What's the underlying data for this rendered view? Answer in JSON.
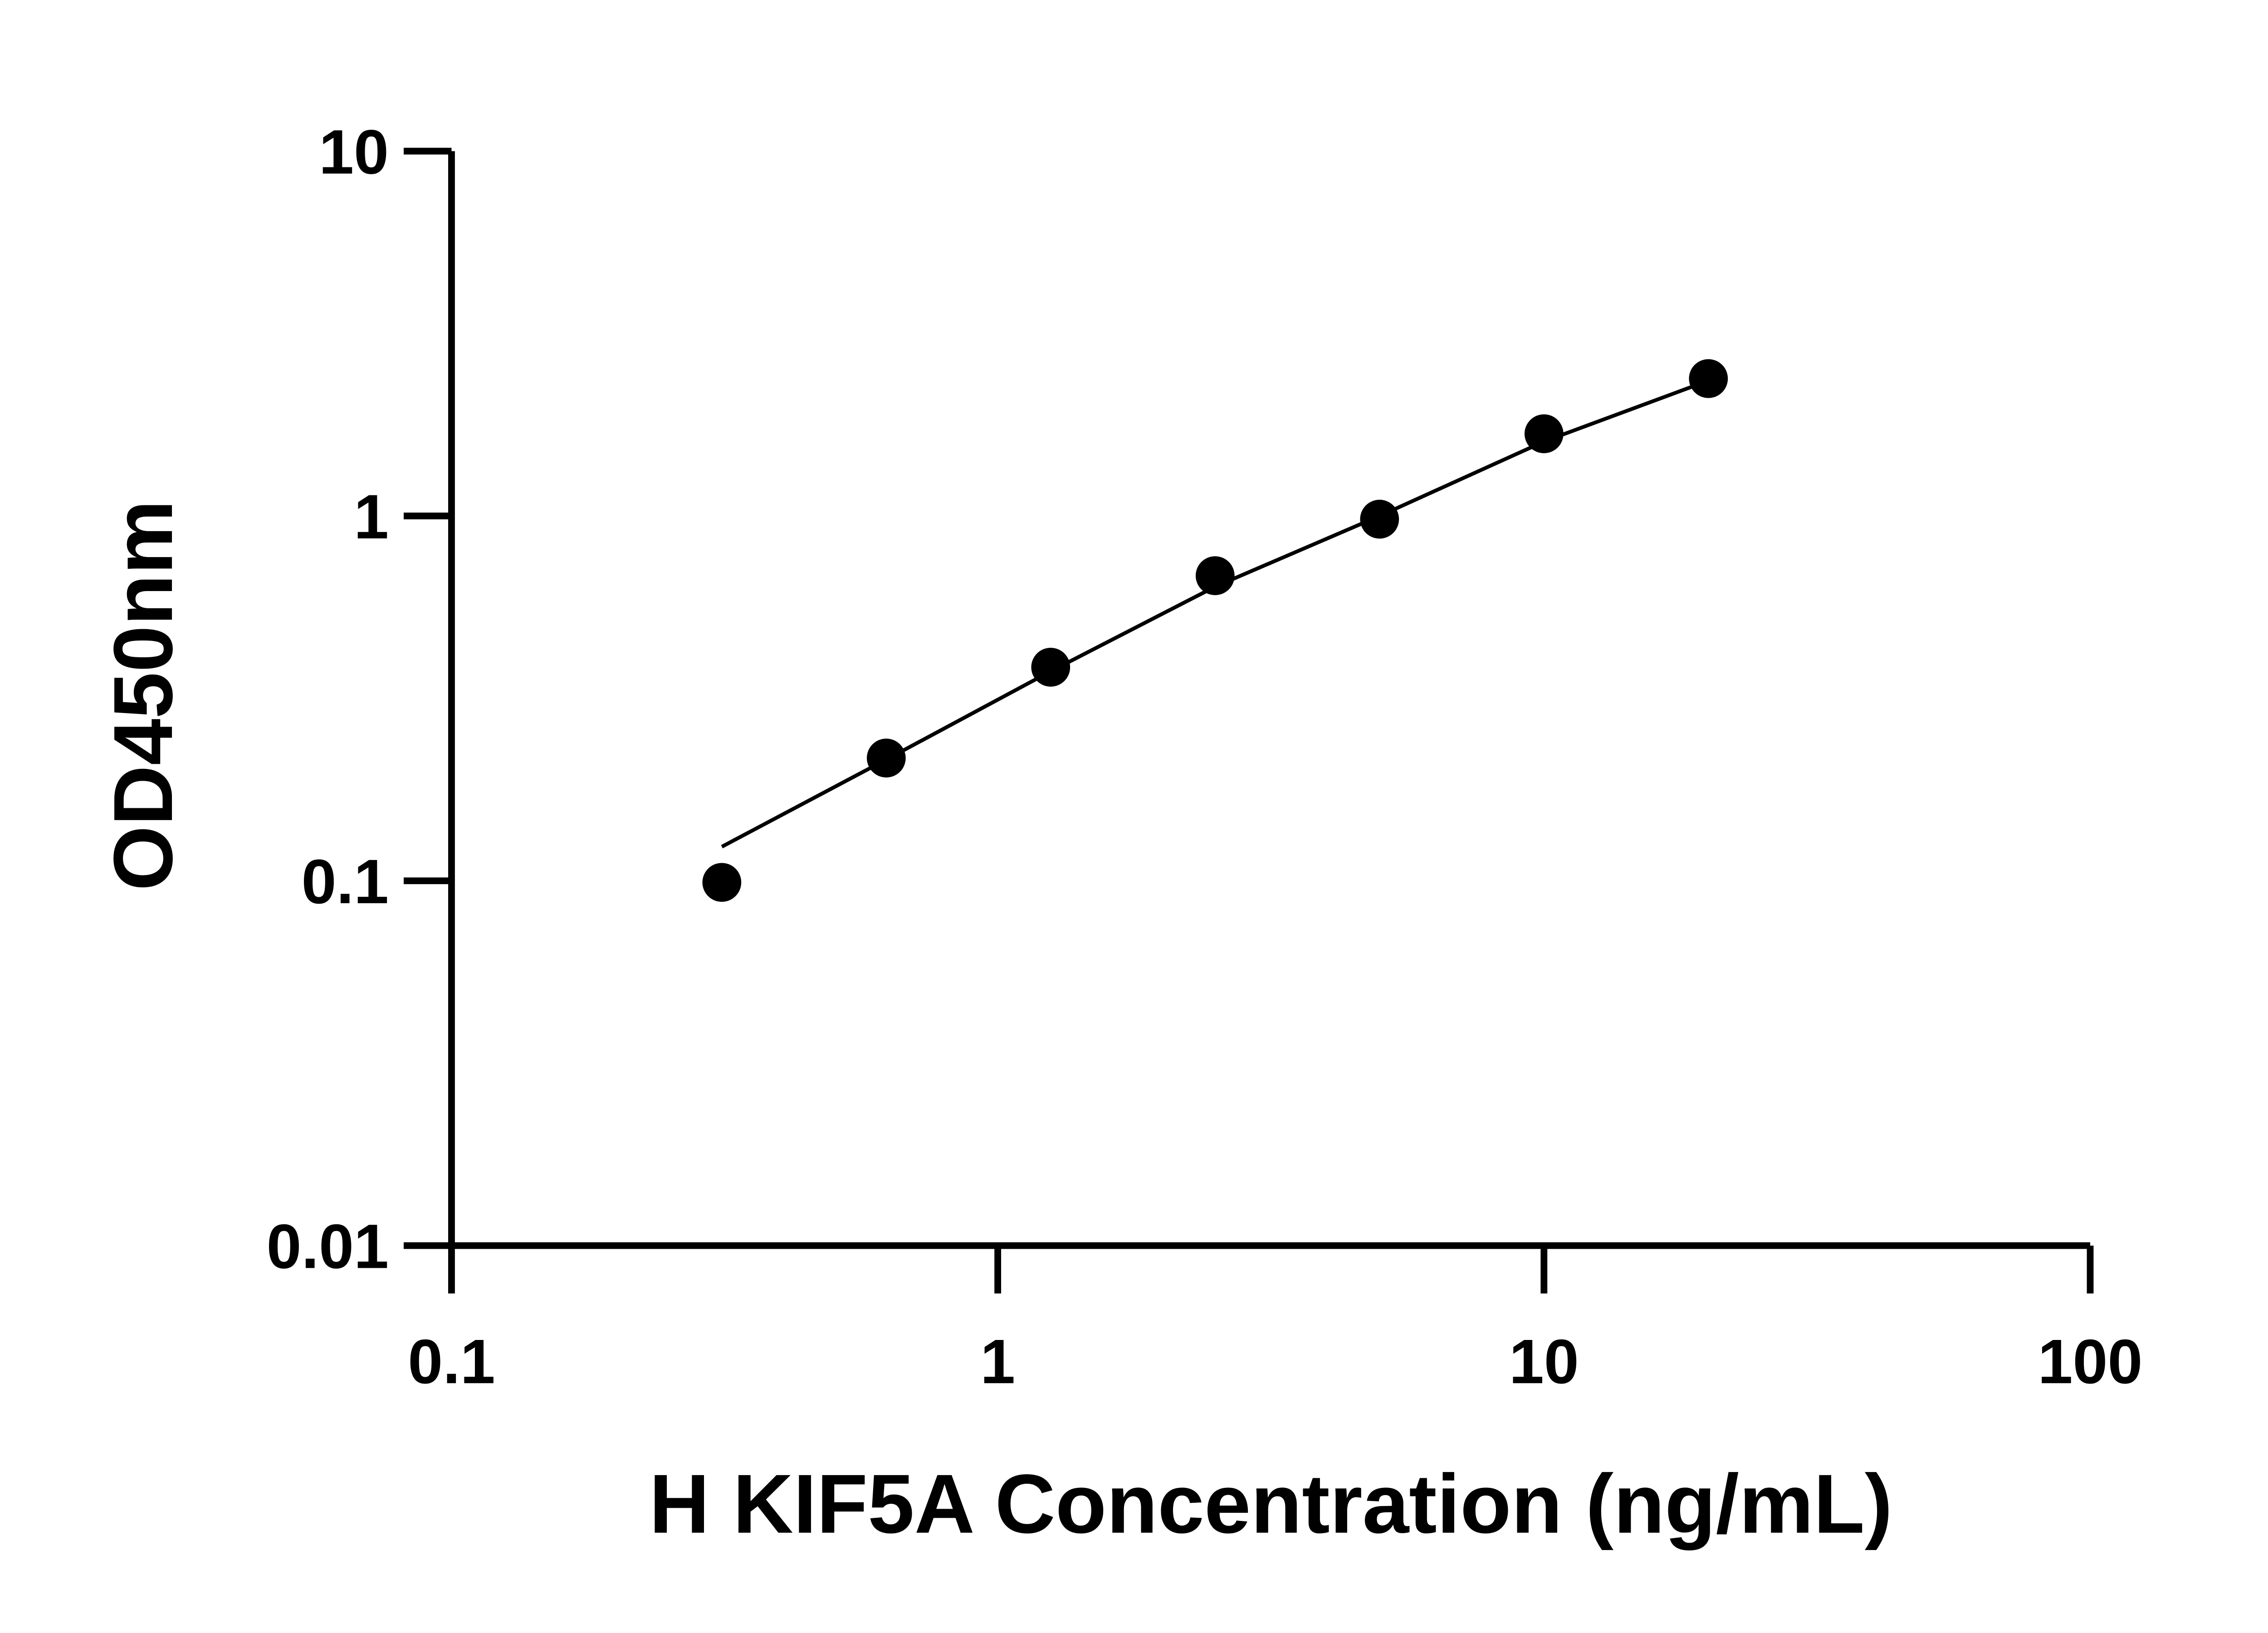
{
  "chart_data": {
    "type": "scatter",
    "title": "",
    "xlabel": "H KIF5A Concentration (ng/mL)",
    "ylabel": "OD450nm",
    "x_scale": "log",
    "y_scale": "log",
    "xlim": [
      0.1,
      100
    ],
    "ylim": [
      0.01,
      10
    ],
    "x_ticks": [
      "0.1",
      "1",
      "10",
      "100"
    ],
    "y_ticks": [
      "0.01",
      "0.1",
      "1",
      "10"
    ],
    "x_tick_values": [
      0.1,
      1,
      10,
      100
    ],
    "y_tick_values": [
      0.01,
      0.1,
      1,
      10
    ],
    "grid": false,
    "points": {
      "x": [
        0.3125,
        0.625,
        1.25,
        2.5,
        5,
        10,
        20
      ],
      "y": [
        0.099,
        0.217,
        0.385,
        0.686,
        0.98,
        1.68,
        2.38
      ]
    },
    "fit_curve": {
      "x": [
        0.3125,
        0.625,
        1.25,
        2.5,
        5,
        10,
        20
      ],
      "y": [
        0.124,
        0.215,
        0.375,
        0.64,
        1.0,
        1.6,
        2.35
      ]
    },
    "colors": {
      "points": "#000000",
      "line": "#000000",
      "axes": "#000000"
    }
  }
}
